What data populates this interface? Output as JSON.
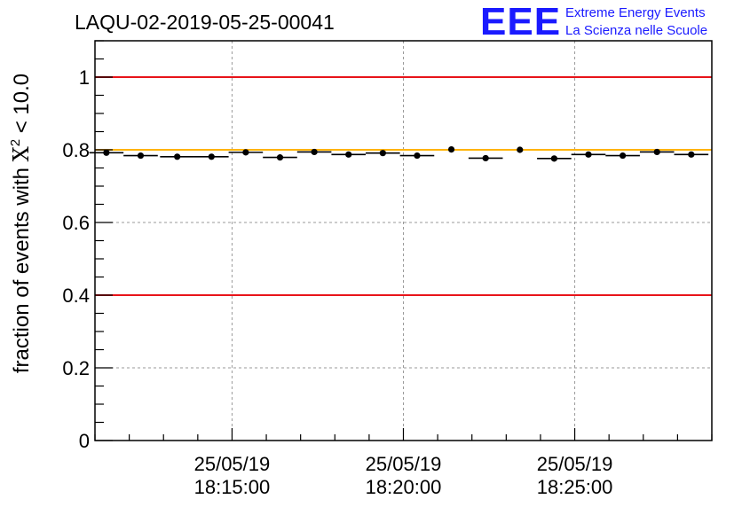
{
  "chart_data": {
    "type": "scatter",
    "title": "LAQU-02-2019-05-25-00041",
    "xlabel": "",
    "ylabel_prefix": "fraction of events with ",
    "ylabel_symbol": "X",
    "ylabel_exponent": "2",
    "ylabel_suffix": " < 10.0",
    "ylim": [
      0,
      1.1
    ],
    "y_ticks": [
      0,
      0.2,
      0.4,
      0.6,
      0.8,
      1
    ],
    "y_tick_labels": [
      "0",
      "0.2",
      "0.4",
      "0.6",
      "0.8",
      "1"
    ],
    "xlim_minutes": [
      0,
      27
    ],
    "x_ticks_minutes": [
      6,
      13.5,
      21
    ],
    "x_tick_labels": [
      {
        "date": "25/05/19",
        "time": "18:15:00"
      },
      {
        "date": "25/05/19",
        "time": "18:20:00"
      },
      {
        "date": "25/05/19",
        "time": "18:25:00"
      }
    ],
    "grid": true,
    "reference_lines": [
      {
        "y": 1.0,
        "color": "#e8141a"
      },
      {
        "y": 0.8,
        "color": "#ffb300"
      },
      {
        "y": 0.4,
        "color": "#e8141a"
      }
    ],
    "series": [
      {
        "name": "fraction",
        "color": "#000000",
        "x_minutes": [
          0.5,
          2.0,
          3.6,
          5.1,
          6.6,
          8.1,
          9.6,
          11.1,
          12.6,
          14.1,
          15.6,
          17.1,
          18.6,
          20.1,
          21.6,
          23.1,
          24.6,
          26.1
        ],
        "x_halfwidth_minutes": [
          0.75,
          0.75,
          0.75,
          0.75,
          0.75,
          0.75,
          0.75,
          0.75,
          0.75,
          0.75,
          0.0,
          0.75,
          0.0,
          0.75,
          0.75,
          0.75,
          0.75,
          0.75
        ],
        "values": [
          0.792,
          0.784,
          0.781,
          0.781,
          0.793,
          0.779,
          0.794,
          0.787,
          0.791,
          0.784,
          0.801,
          0.777,
          0.8,
          0.776,
          0.787,
          0.784,
          0.794,
          0.787
        ]
      }
    ]
  },
  "logo": {
    "mark": "EEE",
    "line1": "Extreme Energy Events",
    "line2": "La Scienza nelle Scuole"
  }
}
